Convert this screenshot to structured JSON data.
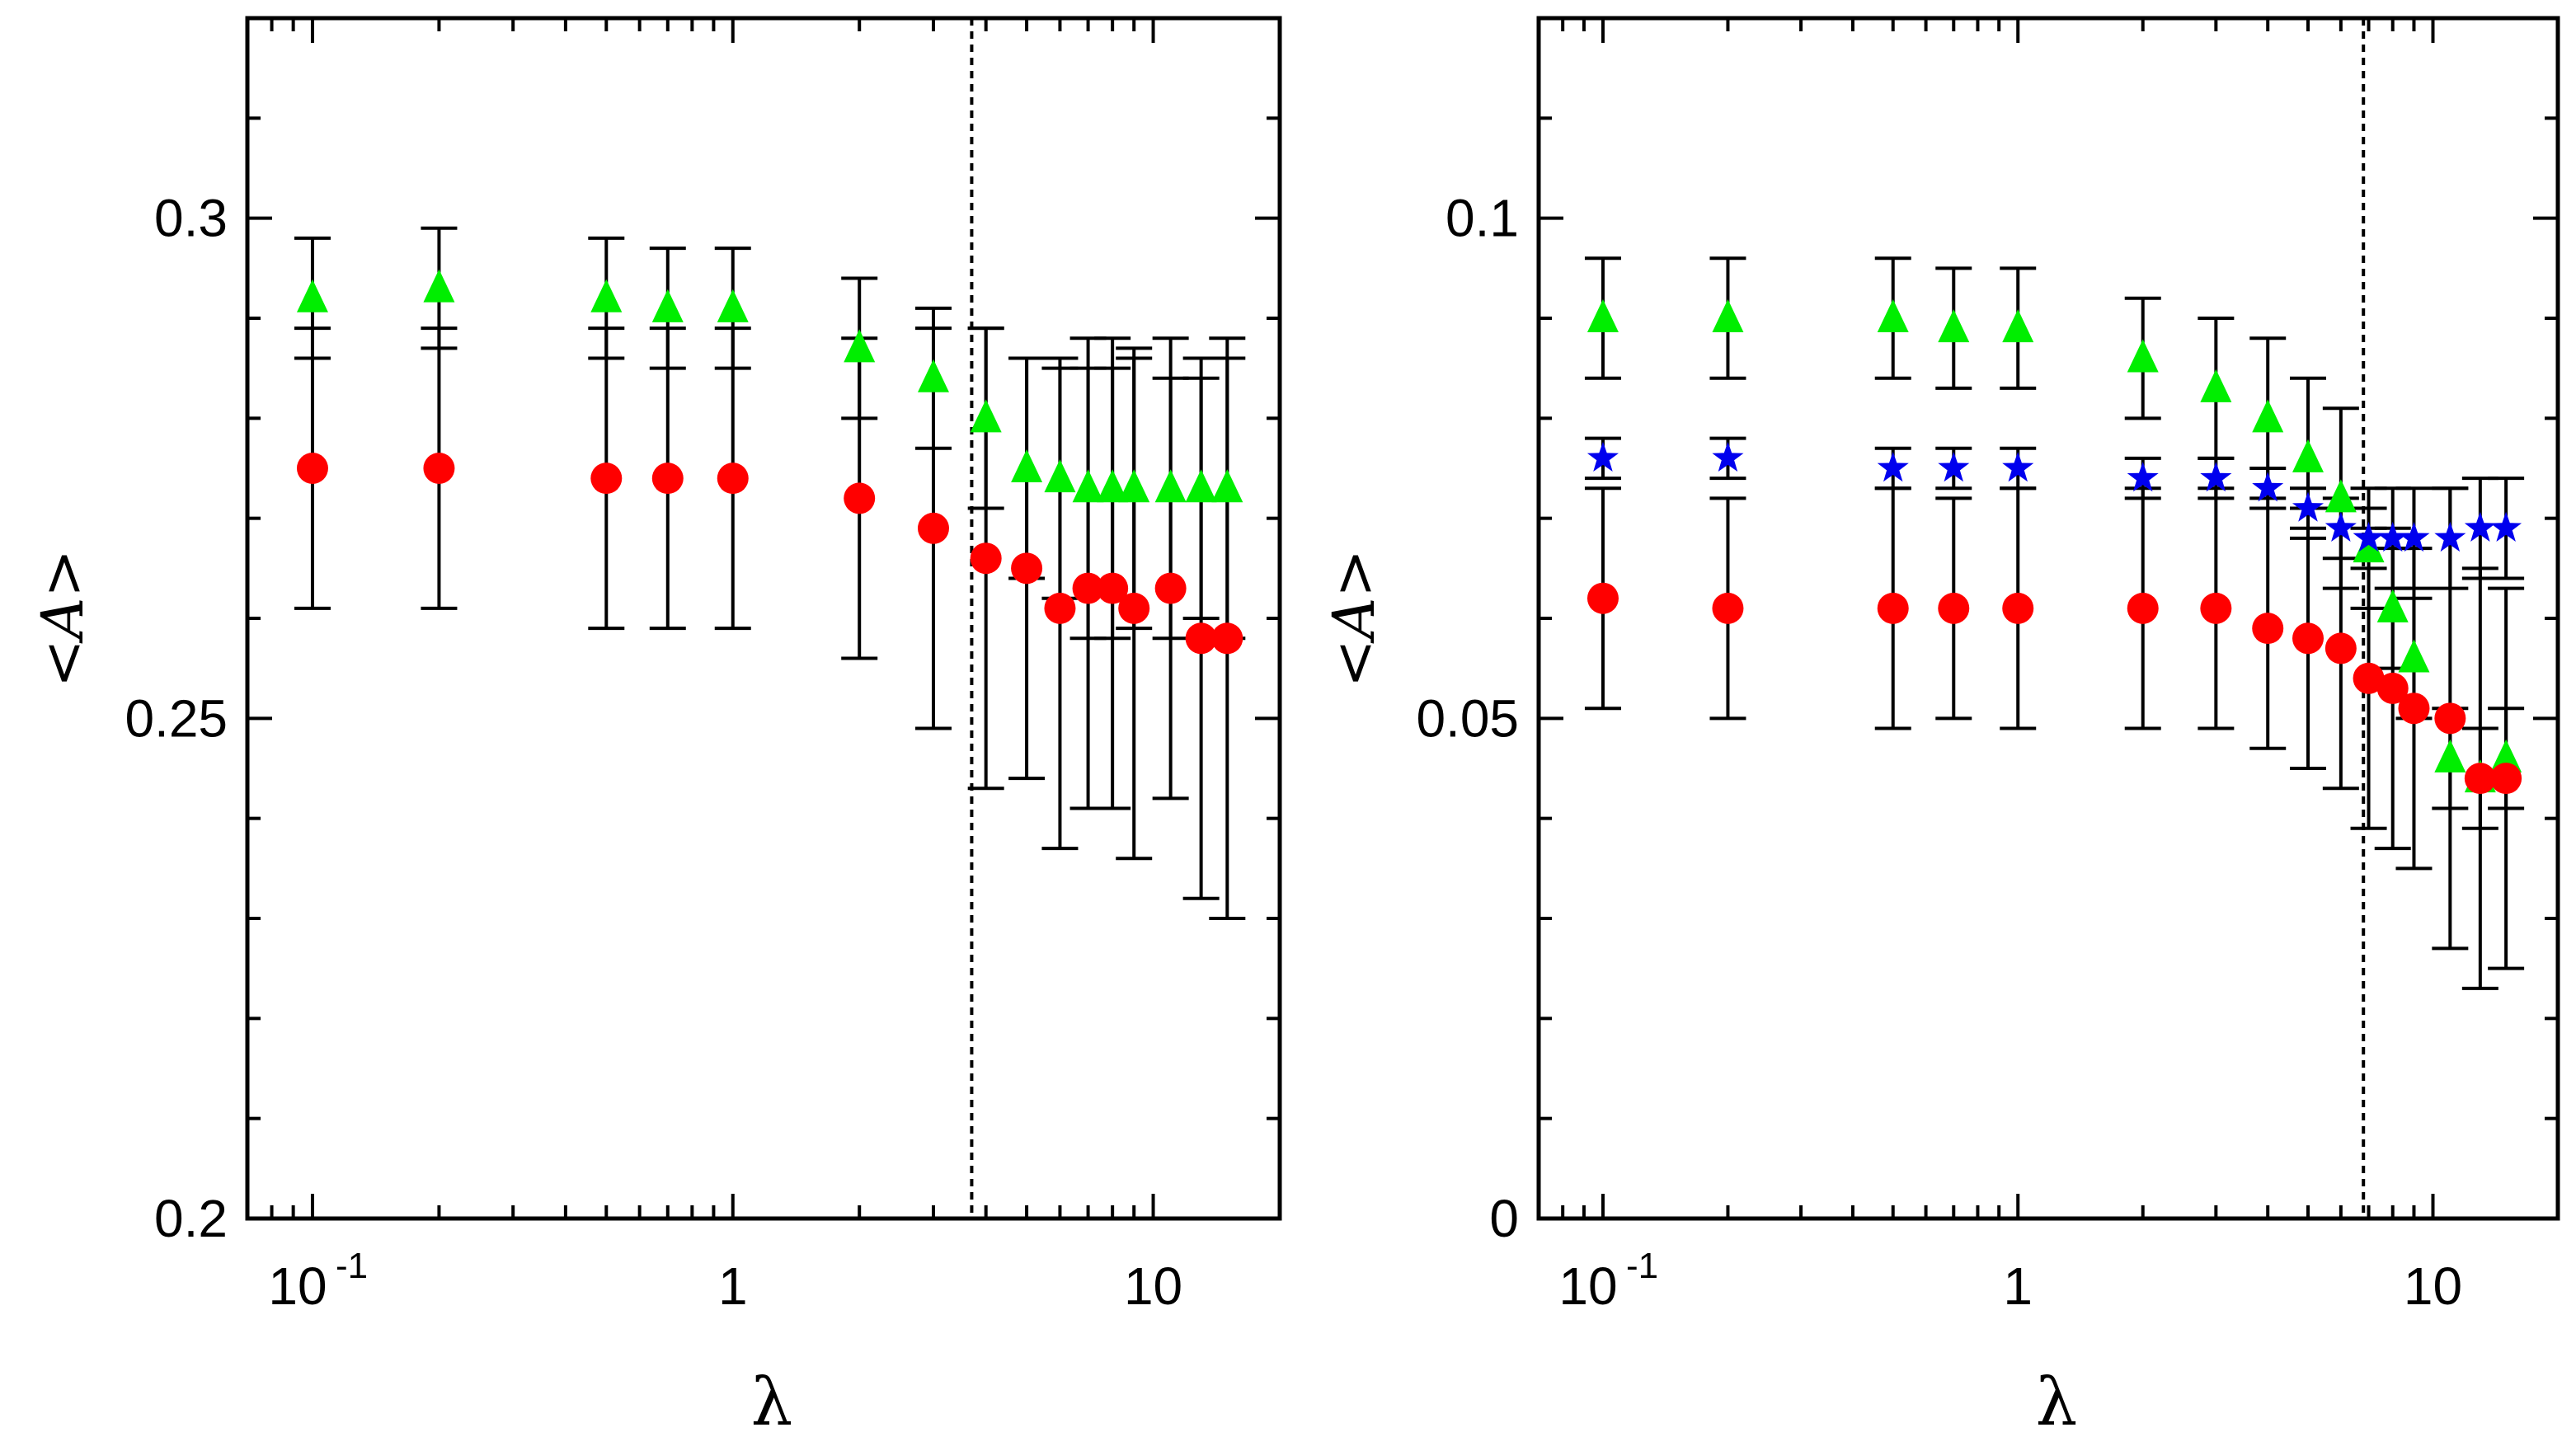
{
  "colors": {
    "axis": "#000000",
    "red_series": "#ff0000",
    "green_series": "#00ee00",
    "blue_series": "#0000ee",
    "errorbar": "#000000",
    "background": "#ffffff"
  },
  "chart_data": [
    {
      "type": "scatter",
      "panel": "left",
      "xscale": "log",
      "xlim": [
        0.07,
        20
      ],
      "ylim": [
        0.2,
        0.32
      ],
      "xlabel": "λ",
      "ylabel": "<A>",
      "major_yticks": [
        {
          "value": 0.2,
          "label": "0.2"
        },
        {
          "value": 0.25,
          "label": "0.25"
        },
        {
          "value": 0.3,
          "label": "0.3"
        }
      ],
      "minor_yticks": [
        0.21,
        0.22,
        0.23,
        0.24,
        0.26,
        0.27,
        0.28,
        0.29,
        0.31
      ],
      "xtick_labels": [
        {
          "value": 0.1,
          "base": "10",
          "exp": "-1"
        },
        {
          "value": 1,
          "base": "1",
          "exp": ""
        },
        {
          "value": 10,
          "base": "10",
          "exp": ""
        }
      ],
      "vline_x": 3.7,
      "series": [
        {
          "name": "green-triangles",
          "marker": "triangle",
          "color": "#00ee00",
          "x": [
            0.1,
            0.2,
            0.5,
            0.7,
            1.0,
            2.0,
            3.0,
            4.0,
            5.0,
            6.0,
            7.0,
            8.0,
            9.0,
            11.0,
            13.0,
            15.0
          ],
          "y": [
            0.292,
            0.293,
            0.292,
            0.291,
            0.291,
            0.287,
            0.284,
            0.28,
            0.275,
            0.274,
            0.273,
            0.273,
            0.273,
            0.273,
            0.273,
            0.273
          ],
          "err": [
            0.006,
            0.006,
            0.006,
            0.006,
            0.006,
            0.007,
            0.007,
            0.009,
            0.011,
            0.012,
            0.015,
            0.015,
            0.014,
            0.015,
            0.013,
            0.015
          ]
        },
        {
          "name": "red-circles",
          "marker": "circle",
          "color": "#ff0000",
          "x": [
            0.1,
            0.2,
            0.5,
            0.7,
            1.0,
            2.0,
            3.0,
            4.0,
            5.0,
            6.0,
            7.0,
            8.0,
            9.0,
            11.0,
            13.0,
            15.0
          ],
          "y": [
            0.275,
            0.275,
            0.274,
            0.274,
            0.274,
            0.272,
            0.269,
            0.266,
            0.265,
            0.261,
            0.263,
            0.263,
            0.261,
            0.263,
            0.258,
            0.258
          ],
          "err": [
            0.014,
            0.014,
            0.015,
            0.015,
            0.015,
            0.016,
            0.02,
            0.023,
            0.021,
            0.024,
            0.022,
            0.022,
            0.025,
            0.021,
            0.026,
            0.028
          ]
        }
      ]
    },
    {
      "type": "scatter",
      "panel": "right",
      "xscale": "log",
      "xlim": [
        0.07,
        20
      ],
      "ylim": [
        0.0,
        0.12
      ],
      "xlabel": "λ",
      "ylabel": "<A>",
      "major_yticks": [
        {
          "value": 0.0,
          "label": "0"
        },
        {
          "value": 0.05,
          "label": "0.05"
        },
        {
          "value": 0.1,
          "label": "0.1"
        }
      ],
      "minor_yticks": [
        0.01,
        0.02,
        0.03,
        0.04,
        0.06,
        0.07,
        0.08,
        0.09,
        0.11
      ],
      "xtick_labels": [
        {
          "value": 0.1,
          "base": "10",
          "exp": "-1"
        },
        {
          "value": 1,
          "base": "1",
          "exp": ""
        },
        {
          "value": 10,
          "base": "10",
          "exp": ""
        }
      ],
      "vline_x": 6.8,
      "series": [
        {
          "name": "green-triangles",
          "marker": "triangle",
          "color": "#00ee00",
          "x": [
            0.1,
            0.2,
            0.5,
            0.7,
            1.0,
            2.0,
            3.0,
            4.0,
            5.0,
            6.0,
            7.0,
            8.0,
            9.0,
            11.0,
            13.0,
            15.0
          ],
          "y": [
            0.09,
            0.09,
            0.09,
            0.089,
            0.089,
            0.086,
            0.083,
            0.08,
            0.076,
            0.072,
            0.067,
            0.061,
            0.056,
            0.046,
            0.044,
            0.046
          ],
          "err": [
            0.006,
            0.006,
            0.006,
            0.006,
            0.006,
            0.006,
            0.007,
            0.008,
            0.008,
            0.009,
            0.006,
            0.006,
            0.006,
            0.005,
            0.005,
            0.005
          ]
        },
        {
          "name": "blue-stars",
          "marker": "star",
          "color": "#0000ee",
          "x": [
            0.1,
            0.2,
            0.5,
            0.7,
            1.0,
            2.0,
            3.0,
            4.0,
            5.0,
            6.0,
            7.0,
            8.0,
            9.0,
            11.0,
            13.0,
            15.0
          ],
          "y": [
            0.076,
            0.076,
            0.075,
            0.075,
            0.075,
            0.074,
            0.074,
            0.073,
            0.071,
            0.069,
            0.068,
            0.068,
            0.068,
            0.068,
            0.069,
            0.069
          ],
          "err": [
            0.002,
            0.002,
            0.002,
            0.002,
            0.002,
            0.002,
            0.002,
            0.002,
            0.002,
            0.003,
            0.003,
            0.005,
            0.005,
            0.005,
            0.005,
            0.005
          ]
        },
        {
          "name": "red-circles",
          "marker": "circle",
          "color": "#ff0000",
          "x": [
            0.1,
            0.2,
            0.5,
            0.7,
            1.0,
            2.0,
            3.0,
            4.0,
            5.0,
            6.0,
            7.0,
            8.0,
            9.0,
            11.0,
            13.0,
            15.0
          ],
          "y": [
            0.062,
            0.061,
            0.061,
            0.061,
            0.061,
            0.061,
            0.061,
            0.059,
            0.058,
            0.057,
            0.054,
            0.053,
            0.051,
            0.05,
            0.044,
            0.044
          ],
          "err": [
            0.011,
            0.011,
            0.012,
            0.011,
            0.012,
            0.012,
            0.012,
            0.012,
            0.013,
            0.014,
            0.015,
            0.016,
            0.016,
            0.023,
            0.021,
            0.019
          ]
        }
      ]
    }
  ]
}
